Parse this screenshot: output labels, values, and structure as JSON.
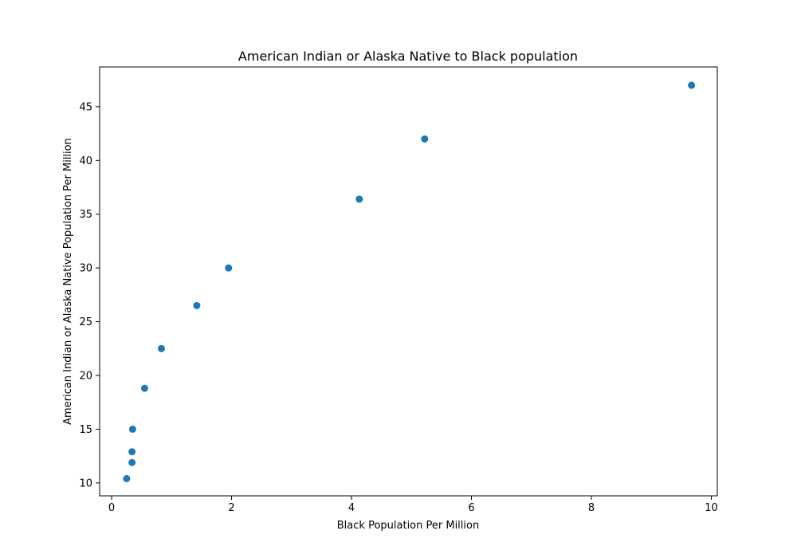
{
  "chart_data": {
    "type": "scatter",
    "title": "American Indian or Alaska Native to Black population",
    "xlabel": "Black Population Per Million",
    "ylabel": "American Indian or Alaska Native Population Per Million",
    "xlim": [
      -0.2,
      10.1
    ],
    "ylim": [
      8.8,
      48.7
    ],
    "xticks": [
      0,
      2,
      4,
      6,
      8,
      10
    ],
    "yticks": [
      10,
      15,
      20,
      25,
      30,
      35,
      40,
      45
    ],
    "grid": false,
    "legend": "none",
    "color": "#1f77b4",
    "points": [
      {
        "x": 0.25,
        "y": 10.4
      },
      {
        "x": 0.34,
        "y": 11.9
      },
      {
        "x": 0.34,
        "y": 12.9
      },
      {
        "x": 0.35,
        "y": 15.0
      },
      {
        "x": 0.55,
        "y": 18.8
      },
      {
        "x": 0.83,
        "y": 22.5
      },
      {
        "x": 1.42,
        "y": 26.5
      },
      {
        "x": 1.95,
        "y": 30.0
      },
      {
        "x": 4.13,
        "y": 36.4
      },
      {
        "x": 5.22,
        "y": 42.0
      },
      {
        "x": 9.67,
        "y": 47.0
      }
    ]
  }
}
